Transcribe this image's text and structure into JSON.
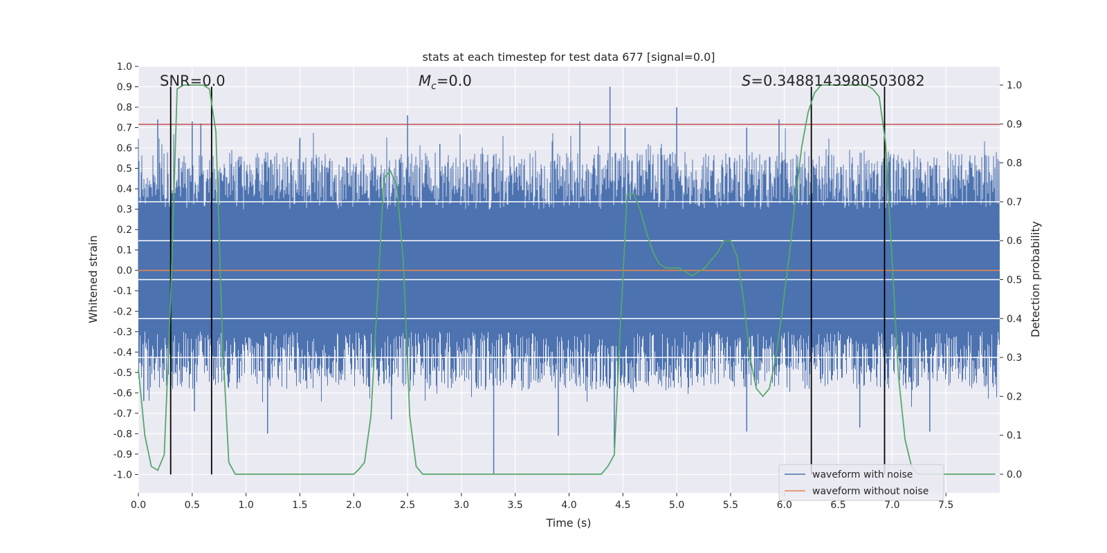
{
  "chart_data": {
    "type": "line",
    "title": "stats at each timestep for test data 677 [signal=0.0]",
    "xlabel": "Time (s)",
    "ylabel": "Whitened strain",
    "y2label": "Detection probability",
    "xlim": [
      0.0,
      8.0
    ],
    "ylim": [
      -1.09,
      1.0
    ],
    "y2lim": [
      -0.048,
      1.048
    ],
    "xticks": [
      "0.0",
      "0.5",
      "1.0",
      "1.5",
      "2.0",
      "2.5",
      "3.0",
      "3.5",
      "4.0",
      "4.5",
      "5.0",
      "5.5",
      "6.0",
      "6.5",
      "7.0",
      "7.5"
    ],
    "yticks": [
      "1.0",
      "0.9",
      "0.8",
      "0.7",
      "0.6",
      "0.5",
      "0.4",
      "0.3",
      "0.2",
      "0.1",
      "0.0",
      "-0.1",
      "-0.2",
      "-0.3",
      "-0.4",
      "-0.5",
      "-0.6",
      "-0.7",
      "-0.8",
      "-0.9",
      "-1.0"
    ],
    "y2ticks": [
      "1.0",
      "0.9",
      "0.8",
      "0.7",
      "0.6",
      "0.5",
      "0.4",
      "0.3",
      "0.2",
      "0.1",
      "0.0"
    ],
    "grid": true,
    "legend_position": "lower-right",
    "annotations": {
      "snr": "SNR=0.0",
      "mc_symbol": "M",
      "mc_sub": "c",
      "mc_value": "=0.0",
      "s_symbol": "S",
      "s_value": "=0.3488143980503082"
    },
    "threshold": 0.716,
    "horizontal_lines_prob": [
      0.3,
      0.4,
      0.5,
      0.6,
      0.7
    ],
    "vertical_lines": [
      {
        "x": 0.3,
        "ymin": -1.0,
        "ymax": 0.9
      },
      {
        "x": 0.68,
        "ymin": -1.0,
        "ymax": 0.9
      },
      {
        "x": 6.25,
        "ymin": -1.0,
        "ymax": 0.9
      },
      {
        "x": 6.93,
        "ymin": -1.0,
        "ymax": 0.9
      }
    ],
    "series": [
      {
        "name": "waveform with noise",
        "color": "#4c72b0",
        "kind": "noise",
        "spikes": [
          [
            0.18,
            0.74
          ],
          [
            0.5,
            0.73
          ],
          [
            0.58,
            0.72
          ],
          [
            1.5,
            0.65
          ],
          [
            2.5,
            0.76
          ],
          [
            4.1,
            0.73
          ],
          [
            4.38,
            0.9
          ],
          [
            4.52,
            0.7
          ],
          [
            5.0,
            0.8
          ],
          [
            5.65,
            0.7
          ],
          [
            5.95,
            0.74
          ],
          [
            6.93,
            0.73
          ],
          [
            2.8,
            0.62
          ],
          [
            3.3,
            -1.0
          ],
          [
            4.42,
            -0.87
          ],
          [
            1.2,
            -0.8
          ],
          [
            5.65,
            -0.79
          ],
          [
            7.35,
            -0.79
          ],
          [
            6.7,
            -0.77
          ],
          [
            0.05,
            -0.64
          ],
          [
            3.9,
            -0.81
          ],
          [
            2.35,
            -0.73
          ],
          [
            0.52,
            -0.69
          ]
        ]
      },
      {
        "name": "waveform without noise",
        "color": "#dd8452",
        "x": [
          0.0,
          8.0
        ],
        "y": [
          0.0,
          0.0
        ]
      },
      {
        "name": "Detection probability",
        "color": "#55a868",
        "axis": "right",
        "x": [
          0.0,
          0.06,
          0.12,
          0.18,
          0.24,
          0.3,
          0.36,
          0.42,
          0.48,
          0.54,
          0.6,
          0.66,
          0.72,
          0.78,
          0.84,
          0.9,
          0.96,
          1.0,
          1.5,
          2.0,
          2.04,
          2.1,
          2.16,
          2.22,
          2.28,
          2.34,
          2.4,
          2.46,
          2.52,
          2.58,
          2.64,
          2.7,
          3.0,
          3.5,
          4.0,
          4.3,
          4.36,
          4.42,
          4.48,
          4.54,
          4.6,
          4.66,
          4.72,
          4.78,
          4.84,
          4.9,
          4.96,
          5.02,
          5.08,
          5.14,
          5.2,
          5.26,
          5.32,
          5.38,
          5.44,
          5.5,
          5.56,
          5.62,
          5.68,
          5.74,
          5.8,
          5.86,
          5.92,
          5.98,
          6.04,
          6.1,
          6.16,
          6.22,
          6.28,
          6.34,
          6.4,
          6.46,
          6.52,
          6.58,
          6.64,
          6.7,
          6.76,
          6.82,
          6.88,
          6.94,
          7.0,
          7.06,
          7.12,
          7.18,
          7.24,
          7.3,
          7.5,
          7.96
        ],
        "y": [
          0.27,
          0.1,
          0.02,
          0.01,
          0.05,
          0.45,
          0.99,
          1.0,
          1.0,
          1.0,
          1.0,
          0.99,
          0.88,
          0.35,
          0.03,
          0.0,
          0.0,
          0.0,
          0.0,
          0.0,
          0.01,
          0.03,
          0.15,
          0.45,
          0.76,
          0.78,
          0.74,
          0.55,
          0.15,
          0.02,
          0.0,
          0.0,
          0.0,
          0.0,
          0.0,
          0.0,
          0.02,
          0.05,
          0.4,
          0.72,
          0.72,
          0.68,
          0.62,
          0.57,
          0.54,
          0.53,
          0.53,
          0.53,
          0.52,
          0.51,
          0.52,
          0.53,
          0.55,
          0.57,
          0.6,
          0.6,
          0.56,
          0.45,
          0.3,
          0.22,
          0.2,
          0.22,
          0.3,
          0.42,
          0.55,
          0.7,
          0.84,
          0.93,
          0.98,
          1.0,
          1.0,
          1.0,
          1.0,
          1.0,
          1.0,
          1.0,
          1.0,
          0.99,
          0.97,
          0.85,
          0.55,
          0.25,
          0.09,
          0.02,
          0.0,
          0.0,
          0.0,
          0.0
        ]
      }
    ]
  }
}
